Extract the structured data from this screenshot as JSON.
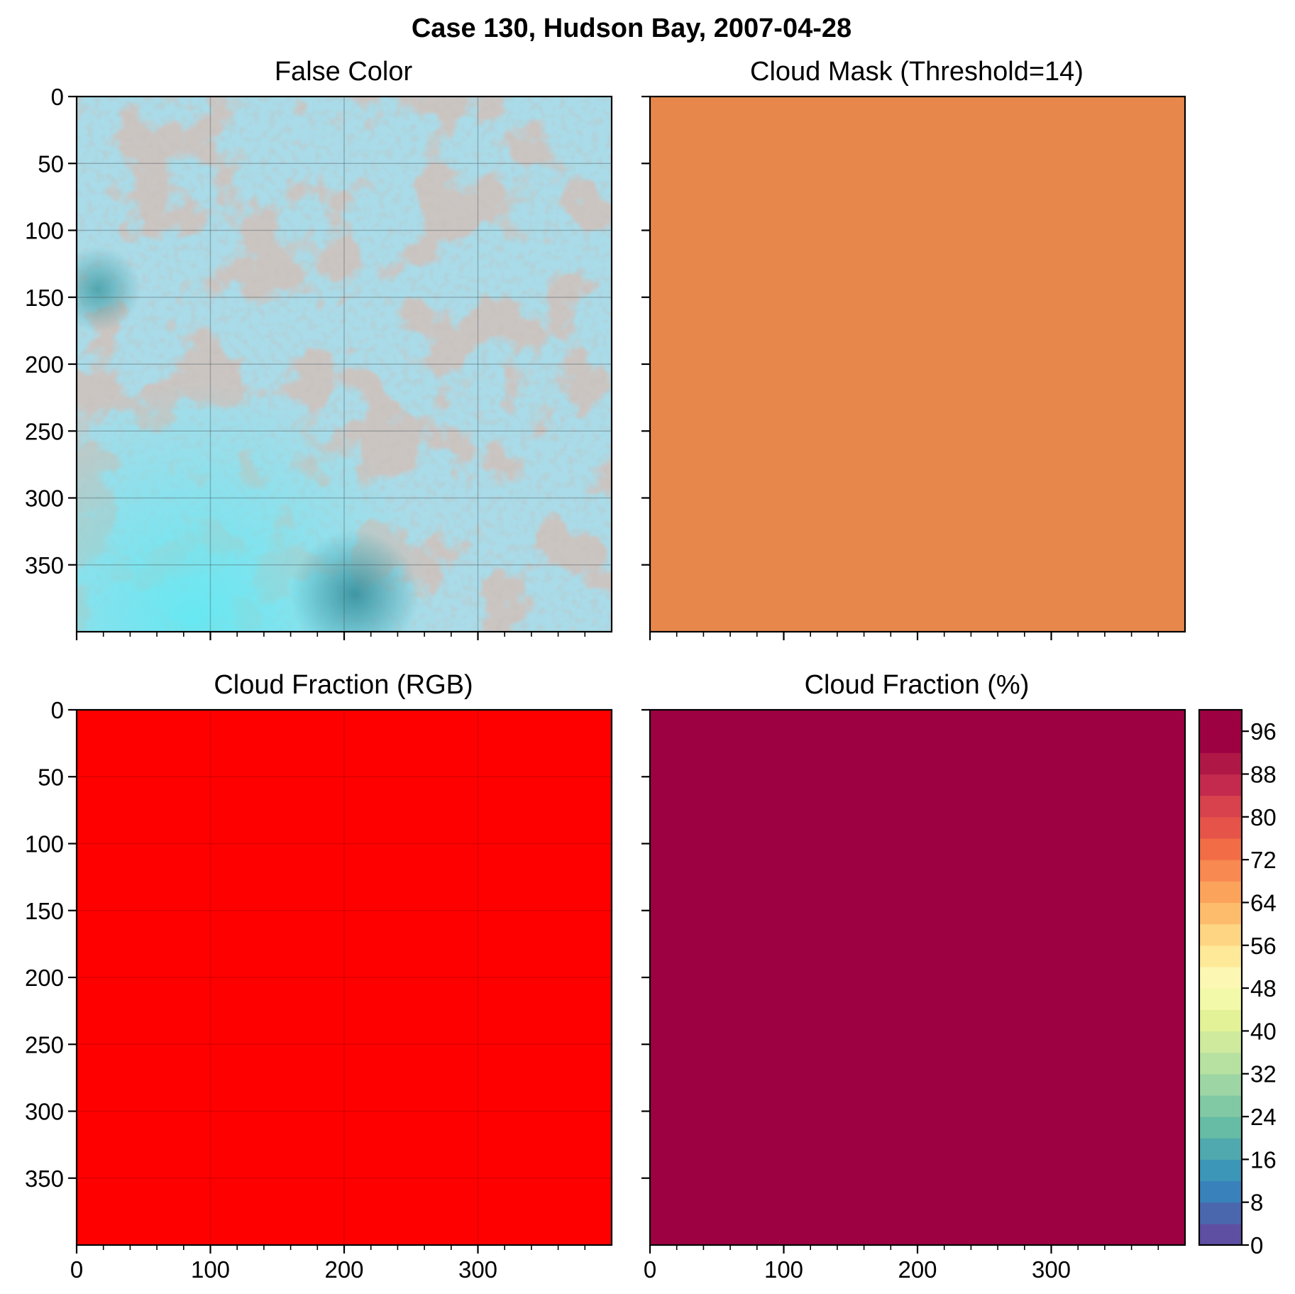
{
  "figure": {
    "title": "Case 130, Hudson Bay, 2007-04-28"
  },
  "chart_data": [
    {
      "type": "image",
      "title": "False Color",
      "xlim": [
        0,
        400
      ],
      "ylim": [
        400,
        0
      ],
      "xticks": [
        0,
        100,
        200,
        300
      ],
      "yticks": [
        0,
        50,
        100,
        150,
        200,
        250,
        300,
        350
      ],
      "grid": true,
      "colors": {
        "base": "#a9dbe8",
        "land": "#9a8f8a",
        "water_cyan": "#63e2ee",
        "dark_teal": "#3d9aa8"
      }
    },
    {
      "type": "heatmap",
      "title": "Cloud Mask (Threshold=14)",
      "xlim": [
        0,
        400
      ],
      "ylim": [
        400,
        0
      ],
      "xticks": [
        0,
        100,
        200,
        300
      ],
      "yticks": [
        0,
        50,
        100,
        150,
        200,
        250,
        300,
        350
      ],
      "grid": false,
      "fill_color": "#e8874c"
    },
    {
      "type": "heatmap",
      "title": "Cloud Fraction (RGB)",
      "xlim": [
        0,
        400
      ],
      "ylim": [
        400,
        0
      ],
      "xticks": [
        0,
        100,
        200,
        300
      ],
      "yticks": [
        0,
        50,
        100,
        150,
        200,
        250,
        300,
        350
      ],
      "grid": true,
      "fill_color": "#ff0000"
    },
    {
      "type": "heatmap",
      "title": "Cloud Fraction (%)",
      "xlim": [
        0,
        400
      ],
      "ylim": [
        400,
        0
      ],
      "xticks": [
        0,
        100,
        200,
        300
      ],
      "yticks": [
        0,
        50,
        100,
        150,
        200,
        250,
        300,
        350
      ],
      "grid": false,
      "value": 100,
      "fill_color": "#9e0142",
      "colorbar": {
        "range": [
          0,
          100
        ],
        "levels": [
          0,
          4,
          8,
          12,
          16,
          20,
          24,
          28,
          32,
          36,
          40,
          44,
          48,
          52,
          56,
          60,
          64,
          68,
          72,
          76,
          80,
          84,
          88,
          92,
          96,
          100
        ],
        "ticks": [
          0,
          8,
          16,
          24,
          32,
          40,
          48,
          56,
          64,
          72,
          80,
          88,
          96
        ],
        "colors": [
          "#5e4fa2",
          "#4a67ae",
          "#3981ba",
          "#3b96b8",
          "#4fa9ae",
          "#66bca5",
          "#81c9a4",
          "#9dd5a4",
          "#b7e1a1",
          "#cfea9d",
          "#e3f296",
          "#f2f9a8",
          "#fcf8b4",
          "#fee999",
          "#fed683",
          "#fdbc6c",
          "#fca35b",
          "#f88950",
          "#f26d46",
          "#e65449",
          "#d8424c",
          "#c32a4e",
          "#af1846",
          "#9e0142",
          "#9e0142"
        ]
      }
    }
  ]
}
